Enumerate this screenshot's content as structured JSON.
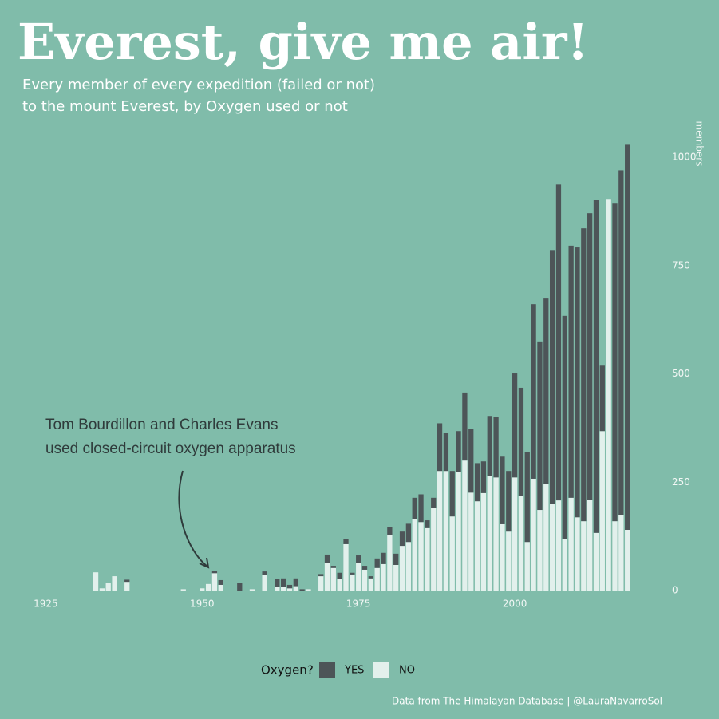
{
  "chart_data": {
    "type": "stacked_bar",
    "title": "Everest, give me air!",
    "subtitle": [
      "Every member of every expedition (failed or not)",
      "to the mount Everest, by Oxygen used or not"
    ],
    "annotation": [
      "Tom Bourdillon and Charles Evans",
      "used closed-circuit oxygen apparatus"
    ],
    "y_label": "members",
    "legend_title": "Oxygen?",
    "caption": "Data from The Himalayan Database | @LauraNavarroSol",
    "x": [
      1933,
      1934,
      1935,
      1936,
      1938,
      1947,
      1950,
      1951,
      1952,
      1953,
      1956,
      1958,
      1960,
      1962,
      1963,
      1964,
      1965,
      1966,
      1967,
      1969,
      1970,
      1971,
      1972,
      1973,
      1974,
      1975,
      1976,
      1977,
      1978,
      1979,
      1980,
      1981,
      1982,
      1983,
      1984,
      1985,
      1986,
      1987,
      1988,
      1989,
      1990,
      1991,
      1992,
      1993,
      1994,
      1995,
      1996,
      1997,
      1998,
      1999,
      2000,
      2001,
      2002,
      2003,
      2004,
      2005,
      2006,
      2007,
      2008,
      2009,
      2010,
      2011,
      2012,
      2013,
      2014,
      2015,
      2016,
      2017,
      2018
    ],
    "series": [
      {
        "name": "YES",
        "color": "#4d5558",
        "values": [
          0,
          0,
          0,
          0,
          5,
          0,
          0,
          0,
          5,
          11,
          17,
          0,
          8,
          18,
          19,
          8,
          18,
          3,
          0,
          5,
          19,
          5,
          15,
          11,
          4,
          18,
          9,
          5,
          22,
          26,
          17,
          26,
          33,
          42,
          50,
          64,
          18,
          24,
          110,
          87,
          105,
          94,
          157,
          147,
          88,
          73,
          138,
          140,
          156,
          140,
          240,
          249,
          208,
          403,
          389,
          429,
          587,
          729,
          516,
          582,
          623,
          676,
          661,
          768,
          151,
          0,
          733,
          795,
          889
        ]
      },
      {
        "name": "NO",
        "color": "#e2f0ec",
        "values": [
          42,
          5,
          18,
          33,
          20,
          3,
          5,
          15,
          40,
          13,
          0,
          3,
          36,
          8,
          9,
          5,
          10,
          0,
          3,
          33,
          64,
          52,
          26,
          107,
          37,
          63,
          48,
          28,
          52,
          61,
          129,
          59,
          103,
          112,
          164,
          158,
          144,
          190,
          276,
          276,
          171,
          274,
          300,
          226,
          206,
          225,
          265,
          261,
          153,
          136,
          261,
          219,
          112,
          258,
          186,
          245,
          199,
          208,
          118,
          214,
          169,
          160,
          210,
          133,
          368,
          904,
          160,
          175,
          140
        ]
      }
    ],
    "xlim": [
      1921,
      2019
    ],
    "xticks": [
      1925,
      1950,
      1975,
      2000
    ],
    "ylim": [
      0,
      1050
    ],
    "yticks": [
      0,
      250,
      500,
      750,
      1000
    ]
  }
}
